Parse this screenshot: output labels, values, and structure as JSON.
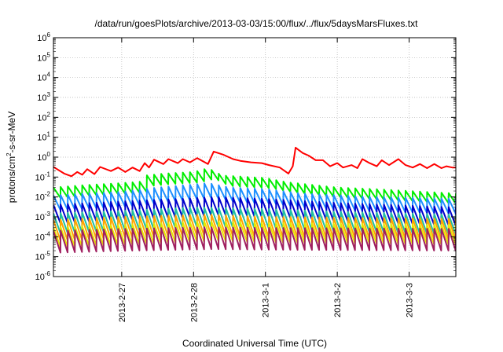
{
  "chart_data": {
    "type": "line",
    "title": "/data/run/goesPlots/archive/2013-03-03/15:00/flux/../flux/5daysMarsFluxes.txt",
    "xlabel": "Coordinated Universal Time (UTC)",
    "ylabel_parts": [
      "protons/cm",
      "2",
      "-s-sr-MeV"
    ],
    "yscale": "log",
    "ylim_exp": [
      -6,
      6
    ],
    "y_ticks": [
      {
        "base": "10",
        "exp": "-6",
        "e": -6
      },
      {
        "base": "10",
        "exp": "-5",
        "e": -5
      },
      {
        "base": "10",
        "exp": "-4",
        "e": -4
      },
      {
        "base": "10",
        "exp": "-3",
        "e": -3
      },
      {
        "base": "10",
        "exp": "-2",
        "e": -2
      },
      {
        "base": "10",
        "exp": "-1",
        "e": -1
      },
      {
        "base": "10",
        "exp": "0",
        "e": 0
      },
      {
        "base": "10",
        "exp": "1",
        "e": 1
      },
      {
        "base": "10",
        "exp": "2",
        "e": 2
      },
      {
        "base": "10",
        "exp": "3",
        "e": 3
      },
      {
        "base": "10",
        "exp": "4",
        "e": 4
      },
      {
        "base": "10",
        "exp": "5",
        "e": 5
      },
      {
        "base": "10",
        "exp": "6",
        "e": 6
      }
    ],
    "x_ticks": [
      "2013-2-27",
      "2013-2-28",
      "2013-3-1",
      "2013-3-2",
      "2013-3-3"
    ],
    "xlim_days": [
      -0.95,
      4.65
    ],
    "grid": true,
    "series": [
      {
        "color": "#ff0000",
        "points": [
          [
            -0.95,
            0.32
          ],
          [
            -0.8,
            0.15
          ],
          [
            -0.7,
            0.11
          ],
          [
            -0.62,
            0.18
          ],
          [
            -0.55,
            0.13
          ],
          [
            -0.48,
            0.25
          ],
          [
            -0.38,
            0.14
          ],
          [
            -0.3,
            0.32
          ],
          [
            -0.15,
            0.2
          ],
          [
            -0.05,
            0.3
          ],
          [
            0.05,
            0.18
          ],
          [
            0.15,
            0.3
          ],
          [
            0.25,
            0.2
          ],
          [
            0.32,
            0.5
          ],
          [
            0.38,
            0.3
          ],
          [
            0.45,
            0.75
          ],
          [
            0.58,
            0.45
          ],
          [
            0.65,
            0.8
          ],
          [
            0.78,
            0.5
          ],
          [
            0.85,
            0.8
          ],
          [
            0.95,
            0.55
          ],
          [
            1.05,
            0.9
          ],
          [
            1.2,
            0.45
          ],
          [
            1.28,
            1.9
          ],
          [
            1.42,
            1.3
          ],
          [
            1.55,
            0.8
          ],
          [
            1.65,
            0.65
          ],
          [
            1.8,
            0.55
          ],
          [
            1.95,
            0.5
          ],
          [
            2.05,
            0.4
          ],
          [
            2.2,
            0.3
          ],
          [
            2.32,
            0.15
          ],
          [
            2.38,
            0.35
          ],
          [
            2.42,
            3.0
          ],
          [
            2.52,
            1.6
          ],
          [
            2.6,
            1.2
          ],
          [
            2.7,
            0.7
          ],
          [
            2.8,
            0.7
          ],
          [
            2.9,
            0.35
          ],
          [
            3.0,
            0.5
          ],
          [
            3.08,
            0.3
          ],
          [
            3.2,
            0.4
          ],
          [
            3.28,
            0.28
          ],
          [
            3.35,
            0.8
          ],
          [
            3.45,
            0.5
          ],
          [
            3.55,
            0.35
          ],
          [
            3.62,
            0.7
          ],
          [
            3.72,
            0.4
          ],
          [
            3.85,
            0.8
          ],
          [
            3.95,
            0.4
          ],
          [
            4.05,
            0.3
          ],
          [
            4.15,
            0.45
          ],
          [
            4.25,
            0.28
          ],
          [
            4.35,
            0.45
          ],
          [
            4.45,
            0.28
          ],
          [
            4.52,
            0.35
          ],
          [
            4.6,
            0.3
          ],
          [
            4.65,
            0.3
          ]
        ]
      },
      {
        "color": "#00ee00",
        "top": [
          [
            -0.95,
            0.03
          ],
          [
            -0.5,
            0.04
          ],
          [
            0.0,
            0.05
          ],
          [
            0.3,
            0.06
          ],
          [
            0.32,
            0.12
          ],
          [
            0.6,
            0.15
          ],
          [
            1.0,
            0.18
          ],
          [
            1.2,
            0.28
          ],
          [
            1.4,
            0.12
          ],
          [
            2.0,
            0.09
          ],
          [
            2.3,
            0.055
          ],
          [
            3.0,
            0.03
          ],
          [
            3.5,
            0.025
          ],
          [
            4.0,
            0.02
          ],
          [
            4.65,
            0.015
          ]
        ],
        "ratio": 0.3
      },
      {
        "color": "#1e90ff",
        "top": [
          [
            -0.95,
            0.012
          ],
          [
            0.0,
            0.018
          ],
          [
            0.5,
            0.03
          ],
          [
            1.2,
            0.05
          ],
          [
            1.5,
            0.03
          ],
          [
            2.0,
            0.025
          ],
          [
            2.5,
            0.015
          ],
          [
            3.5,
            0.01
          ],
          [
            4.65,
            0.008
          ]
        ],
        "ratio": 0.18
      },
      {
        "color": "#0000cc",
        "top": [
          [
            -0.95,
            0.004
          ],
          [
            0.0,
            0.006
          ],
          [
            0.8,
            0.008
          ],
          [
            1.3,
            0.01
          ],
          [
            2.0,
            0.008
          ],
          [
            3.0,
            0.005
          ],
          [
            4.65,
            0.003
          ]
        ],
        "ratio": 0.12
      },
      {
        "color": "#20c0a0",
        "top": [
          [
            -0.95,
            0.0015
          ],
          [
            0.0,
            0.002
          ],
          [
            1.0,
            0.003
          ],
          [
            2.0,
            0.0025
          ],
          [
            3.0,
            0.0018
          ],
          [
            4.65,
            0.0013
          ]
        ],
        "ratio": 0.1
      },
      {
        "color": "#ffa500",
        "top": [
          [
            -0.95,
            0.0007
          ],
          [
            0.0,
            0.001
          ],
          [
            1.2,
            0.0013
          ],
          [
            2.0,
            0.001
          ],
          [
            4.65,
            0.0008
          ]
        ],
        "ratio": 0.09
      },
      {
        "color": "#e8e800",
        "top": [
          [
            -0.95,
            0.0003
          ],
          [
            0.0,
            0.0004
          ],
          [
            1.2,
            0.0006
          ],
          [
            2.0,
            0.0005
          ],
          [
            4.65,
            0.0004
          ]
        ],
        "ratio": 0.1
      },
      {
        "color": "#a02060",
        "top": [
          [
            -0.95,
            0.0002
          ],
          [
            0.0,
            0.00025
          ],
          [
            1.2,
            0.0003
          ],
          [
            2.0,
            0.00028
          ],
          [
            4.65,
            0.00025
          ]
        ],
        "ratio": 0.08
      }
    ]
  }
}
